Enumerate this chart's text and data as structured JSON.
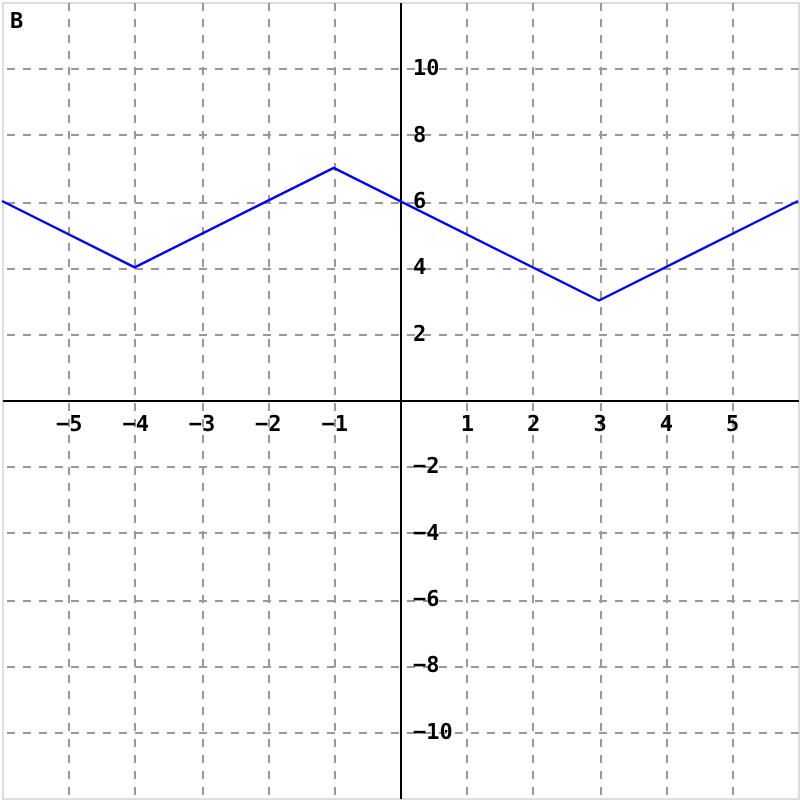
{
  "chart_data": {
    "type": "line",
    "title": "B",
    "x": [
      -6,
      -4,
      -1,
      3,
      6
    ],
    "series": [
      {
        "color": "#0000ff",
        "values": [
          6,
          4,
          7,
          3,
          6
        ]
      }
    ],
    "xlim": [
      -6,
      6
    ],
    "ylim": [
      -12,
      12
    ],
    "xticks": [
      -5,
      -4,
      -3,
      -2,
      -1,
      1,
      2,
      3,
      4,
      5
    ],
    "yticks": [
      -10,
      -8,
      -6,
      -4,
      -2,
      2,
      4,
      6,
      8,
      10
    ],
    "grid": true,
    "marker": "none",
    "line_style": "solid"
  }
}
